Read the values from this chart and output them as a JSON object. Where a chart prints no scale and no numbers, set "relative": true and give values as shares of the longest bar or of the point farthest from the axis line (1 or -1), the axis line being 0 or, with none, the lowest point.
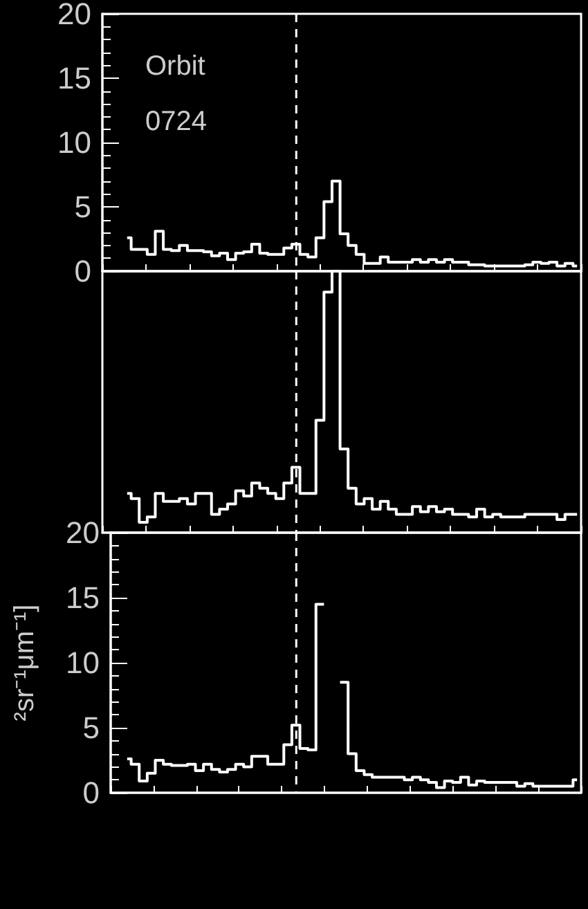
{
  "chart_data": [
    {
      "type": "step",
      "categories": [
        null,
        null,
        null,
        null,
        null,
        null,
        null,
        null,
        null,
        null,
        null,
        null,
        null,
        null,
        null,
        null,
        null,
        null,
        null,
        null,
        null,
        null,
        null,
        null,
        null,
        null,
        null,
        null,
        null,
        null,
        null,
        null,
        null,
        null,
        null,
        null,
        null,
        null,
        null,
        null,
        null,
        null,
        null,
        null,
        null,
        null,
        null,
        null,
        null,
        null,
        null,
        null,
        null,
        null,
        null,
        null,
        null
      ],
      "series": [
        {
          "color": "#ffffff",
          "values": [
            2.6,
            1.7,
            1.7,
            1.3,
            3.1,
            1.7,
            1.6,
            2.0,
            1.6,
            1.6,
            1.5,
            1.2,
            1.4,
            0.9,
            1.4,
            1.5,
            2.1,
            1.4,
            1.3,
            1.3,
            1.8,
            2.1,
            1.3,
            1.1,
            2.6,
            5.4,
            7.0,
            2.9,
            2.0,
            1.3,
            0.6,
            0.6,
            1.1,
            0.7,
            0.7,
            0.7,
            0.9,
            0.7,
            0.9,
            0.7,
            0.9,
            0.7,
            0.7,
            0.5,
            0.5,
            0.4,
            0.4,
            0.4,
            0.4,
            0.4,
            0.5,
            0.7,
            0.6,
            0.7,
            0.4,
            0.6,
            0.4
          ]
        }
      ],
      "ylim": [
        0,
        20
      ],
      "yticks": [
        0,
        5,
        10,
        15,
        20
      ],
      "tick_labels": "y",
      "annotations": [
        "Orbit",
        "0724"
      ]
    },
    {
      "type": "step",
      "relative": true,
      "categories": [
        null,
        null,
        null,
        null,
        null,
        null,
        null,
        null,
        null,
        null,
        null,
        null,
        null,
        null,
        null,
        null,
        null,
        null,
        null,
        null,
        null,
        null,
        null,
        null,
        null,
        null,
        null,
        null,
        null,
        null,
        null,
        null,
        null,
        null,
        null,
        null,
        null,
        null,
        null,
        null,
        null,
        null,
        null,
        null,
        null,
        null,
        null,
        null,
        null,
        null,
        null,
        null,
        null,
        null,
        null,
        null,
        null
      ],
      "series": [
        {
          "color": "#ffffff",
          "values": [
            0.15,
            0.13,
            0.04,
            0.06,
            0.15,
            0.12,
            0.12,
            0.13,
            0.11,
            0.15,
            0.15,
            0.07,
            0.09,
            0.11,
            0.16,
            0.14,
            0.19,
            0.17,
            0.15,
            0.13,
            0.19,
            0.25,
            0.15,
            0.15,
            0.43,
            0.92,
            1,
            0.32,
            0.17,
            0.11,
            0.13,
            0.09,
            0.12,
            0.09,
            0.07,
            0.07,
            0.1,
            0.08,
            0.1,
            0.08,
            0.09,
            0.07,
            0.07,
            0.06,
            0.09,
            0.06,
            0.07,
            0.06,
            0.06,
            0.06,
            0.07,
            0.07,
            0.07,
            0.07,
            0.05,
            0.07,
            0.07
          ]
        }
      ],
      "tick_labels": false
    },
    {
      "type": "step",
      "categories": [
        null,
        null,
        null,
        null,
        null,
        null,
        null,
        null,
        null,
        null,
        null,
        null,
        null,
        null,
        null,
        null,
        null,
        null,
        null,
        null,
        null,
        null,
        null,
        null,
        null,
        null,
        null,
        null,
        null,
        null,
        null,
        null,
        null,
        null,
        null,
        null,
        null,
        null,
        null,
        null,
        null,
        null,
        null,
        null,
        null,
        null,
        null,
        null,
        null,
        null,
        null,
        null,
        null,
        null,
        null,
        null,
        null
      ],
      "series": [
        {
          "color": "#ffffff",
          "values": [
            2.6,
            2.2,
            0.9,
            1.5,
            2.5,
            2.2,
            2.1,
            2.1,
            2.2,
            1.7,
            2.2,
            1.8,
            1.6,
            1.8,
            2.2,
            2.0,
            2.8,
            2.8,
            2.2,
            2.2,
            3.7,
            5.2,
            3.4,
            3.3,
            14.5,
            null,
            null,
            8.5,
            3.0,
            1.7,
            1.4,
            1.2,
            1.2,
            1.2,
            1.2,
            1.0,
            1.2,
            1.0,
            0.8,
            0.4,
            0.9,
            0.8,
            1.2,
            0.6,
            0.9,
            0.8,
            0.8,
            0.8,
            0.8,
            0.5,
            0.7,
            0.5,
            0.5,
            0.5,
            0.5,
            0.5,
            1.0
          ]
        }
      ],
      "ylim": [
        0,
        20
      ],
      "yticks": [
        0,
        5,
        10,
        15,
        20
      ],
      "tick_labels": "y",
      "ylabel": "²sr⁻¹μm⁻¹]"
    }
  ]
}
